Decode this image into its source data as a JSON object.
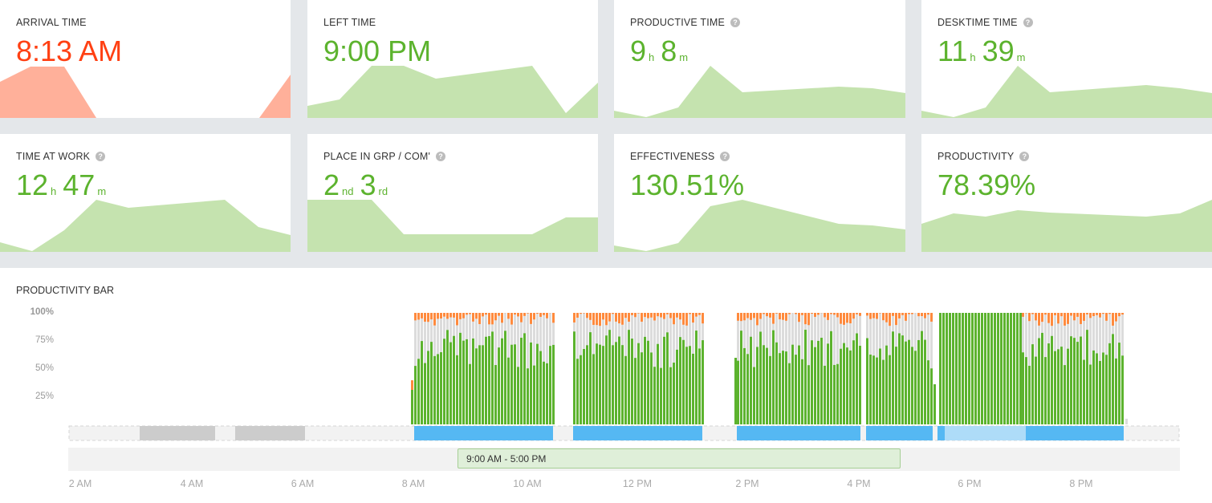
{
  "cards": [
    {
      "title": "ARRIVAL TIME",
      "value": "8:13 AM",
      "help": false
    },
    {
      "title": "LEFT TIME",
      "value": "9:00 PM",
      "help": false
    },
    {
      "title": "PRODUCTIVE TIME",
      "value_parts": [
        "9",
        "h",
        "8",
        "m"
      ],
      "help": true
    },
    {
      "title": "DESKTIME TIME",
      "value_parts": [
        "11",
        "h",
        "39",
        "m"
      ],
      "help": true
    },
    {
      "title": "TIME AT WORK",
      "value_parts": [
        "12",
        "h",
        "47",
        "m"
      ],
      "help": true
    },
    {
      "title": "PLACE IN GRP / COM'",
      "value_parts": [
        "2",
        "nd",
        "3",
        "rd"
      ],
      "help": true
    },
    {
      "title": "EFFECTIVENESS",
      "value": "130.51%",
      "help": true
    },
    {
      "title": "PRODUCTIVITY",
      "value": "78.39%",
      "help": true
    }
  ],
  "help_glyph": "?",
  "productivity_bar": {
    "title": "PRODUCTIVITY BAR",
    "y_labels": [
      "100%",
      "75%",
      "50%",
      "25%"
    ],
    "x_labels": [
      "2 AM",
      "4 AM",
      "6 AM",
      "8 AM",
      "10 AM",
      "12 PM",
      "2 PM",
      "4 PM",
      "6 PM",
      "8 PM"
    ],
    "schedule_label": "9:00 AM - 5:00 PM"
  },
  "colors": {
    "productive": "#5cb32e",
    "neutral": "#dcdcdc",
    "unproductive": "#ff8a3d",
    "spark_green": "#c5e3af",
    "spark_red": "#ffb09a",
    "accent_red": "#ff4013",
    "timeline_blue": "#55b8f3",
    "timeline_light": "#aedcf8",
    "timeline_gray": "#cccccc"
  }
}
